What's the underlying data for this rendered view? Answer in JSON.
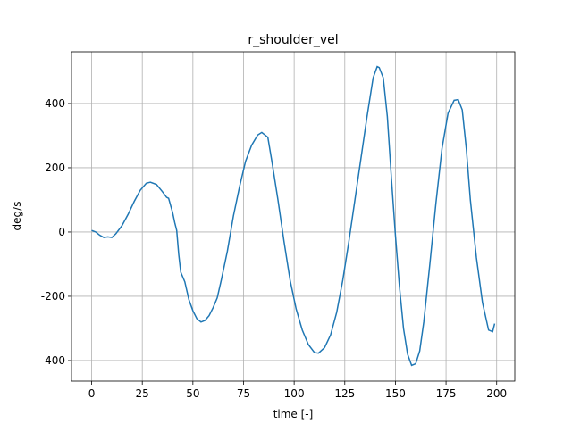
{
  "chart_data": {
    "type": "line",
    "title": "r_shoulder_vel",
    "x_label": "time [-]",
    "y_label": "deg/s",
    "xlim": [
      -9.95,
      208.95
    ],
    "ylim": [
      -464,
      561
    ],
    "xticks": [
      0,
      25,
      50,
      75,
      100,
      125,
      150,
      175,
      200
    ],
    "yticks": [
      -400,
      -200,
      0,
      200,
      400
    ],
    "grid": true,
    "series": [
      {
        "color": "#1f77b4",
        "x": [
          0,
          2,
          4,
          6,
          8,
          10,
          12,
          15,
          18,
          21,
          24,
          27,
          29,
          32,
          35,
          37,
          38,
          40,
          41,
          42,
          43,
          44,
          46,
          48,
          50,
          52,
          54,
          56,
          58,
          60,
          62,
          64,
          67,
          70,
          73,
          76,
          79,
          82,
          84,
          86,
          87,
          89,
          92,
          95,
          98,
          101,
          104,
          107,
          110,
          112,
          115,
          118,
          121,
          124,
          127,
          130,
          133,
          136,
          139,
          141,
          142,
          144,
          146,
          148,
          150,
          152,
          154,
          156,
          158,
          160,
          162,
          164,
          167,
          170,
          173,
          176,
          179,
          181,
          183,
          185,
          187,
          190,
          193,
          196,
          198,
          199
        ],
        "values": [
          5,
          0,
          -10,
          -17,
          -15,
          -17,
          -5,
          20,
          55,
          95,
          130,
          152,
          155,
          148,
          125,
          108,
          105,
          60,
          30,
          5,
          -70,
          -125,
          -155,
          -210,
          -245,
          -270,
          -280,
          -275,
          -260,
          -235,
          -205,
          -150,
          -60,
          50,
          140,
          220,
          270,
          302,
          310,
          300,
          295,
          220,
          100,
          -30,
          -150,
          -240,
          -305,
          -350,
          -375,
          -377,
          -360,
          -320,
          -250,
          -150,
          -30,
          100,
          230,
          360,
          480,
          515,
          512,
          480,
          360,
          170,
          -10,
          -170,
          -300,
          -380,
          -415,
          -410,
          -370,
          -280,
          -100,
          90,
          260,
          370,
          410,
          412,
          380,
          260,
          100,
          -80,
          -220,
          -305,
          -310,
          -285
        ]
      }
    ]
  }
}
